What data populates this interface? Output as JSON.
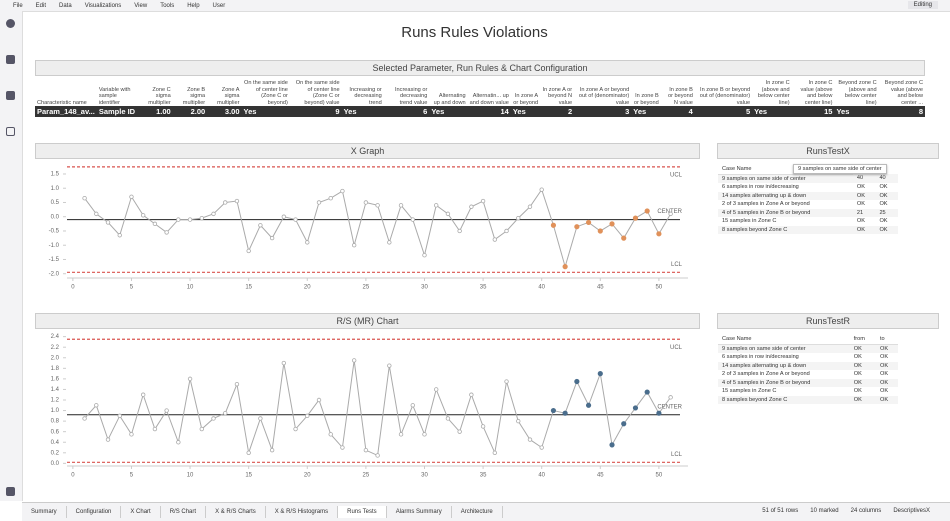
{
  "menu": [
    "File",
    "Edit",
    "Data",
    "Visualizations",
    "View",
    "Tools",
    "Help",
    "User"
  ],
  "mode": "Editing",
  "title": "Runs Rules Violations",
  "config_panel": {
    "title": "Selected Parameter, Run Rules & Chart Configuration",
    "headers": [
      "Characteristic name",
      "Variable with sample identifier",
      "Zone C sigma multiplier",
      "Zone B sigma multiplier",
      "Zone A sigma multiplier",
      "On the same side of center line (Zone C or beyond)",
      "On the same side of center line (Zone C or beyond) value",
      "Increasing or decreasing trend",
      "Increasing or decreasing trend value",
      "Alternating up and down",
      "Alternatin... up and down value",
      "In zone A or beyond",
      "In zone A or beyond N value",
      "In zone A or beyond out of (denominator) value",
      "In zone B or beyond",
      "In zone B or beyond N value",
      "In zone B or beyond out of (denominator) value",
      "In zone C (above and below center line)",
      "In zone C value (above and below center line)",
      "Beyond zone C (above and below center line)",
      "Beyond zone C value (above and below center ..."
    ],
    "row": [
      "Param_148_av...",
      "Sample ID",
      "1.00",
      "2.00",
      "3.00",
      "Yes",
      "9",
      "Yes",
      "6",
      "Yes",
      "14",
      "Yes",
      "2",
      "3",
      "Yes",
      "4",
      "5",
      "Yes",
      "15",
      "Yes",
      "8"
    ]
  },
  "x_graph": {
    "type": "line",
    "title": "X Graph",
    "color": "#aaaaaa",
    "x": [
      1,
      2,
      3,
      4,
      5,
      6,
      7,
      8,
      9,
      10,
      11,
      12,
      13,
      14,
      15,
      16,
      17,
      18,
      19,
      20,
      21,
      22,
      23,
      24,
      25,
      26,
      27,
      28,
      29,
      30,
      31,
      32,
      33,
      34,
      35,
      36,
      37,
      38,
      39,
      40,
      41,
      42,
      43,
      44,
      45,
      46,
      47,
      48,
      49,
      50,
      51
    ],
    "values": [
      0.65,
      0.1,
      -0.2,
      -0.65,
      0.7,
      0.05,
      -0.25,
      -0.55,
      -0.1,
      -0.1,
      -0.05,
      0.1,
      0.5,
      0.55,
      -1.2,
      -0.3,
      -0.75,
      0.0,
      -0.1,
      -0.9,
      0.5,
      0.65,
      0.9,
      -1.0,
      0.5,
      0.4,
      -0.9,
      0.4,
      -0.1,
      -1.35,
      0.4,
      0.1,
      -0.5,
      0.35,
      0.55,
      -0.8,
      -0.5,
      -0.05,
      0.35,
      0.95,
      -0.3,
      -1.75,
      -0.35,
      -0.2,
      -0.5,
      -0.25,
      -0.75,
      -0.05,
      0.2,
      -0.6,
      0.1
    ],
    "point_colors": [
      "#aaaaaa",
      "#aaaaaa",
      "#aaaaaa",
      "#aaaaaa",
      "#aaaaaa",
      "#aaaaaa",
      "#aaaaaa",
      "#aaaaaa",
      "#aaaaaa",
      "#aaaaaa",
      "#aaaaaa",
      "#aaaaaa",
      "#aaaaaa",
      "#aaaaaa",
      "#aaaaaa",
      "#aaaaaa",
      "#aaaaaa",
      "#aaaaaa",
      "#aaaaaa",
      "#aaaaaa",
      "#aaaaaa",
      "#aaaaaa",
      "#aaaaaa",
      "#aaaaaa",
      "#aaaaaa",
      "#aaaaaa",
      "#aaaaaa",
      "#aaaaaa",
      "#aaaaaa",
      "#aaaaaa",
      "#aaaaaa",
      "#aaaaaa",
      "#aaaaaa",
      "#aaaaaa",
      "#aaaaaa",
      "#aaaaaa",
      "#aaaaaa",
      "#aaaaaa",
      "#aaaaaa",
      "#aaaaaa",
      "#e0915a",
      "#e0915a",
      "#e0915a",
      "#e0915a",
      "#e0915a",
      "#e0915a",
      "#e0915a",
      "#e0915a",
      "#e0915a",
      "#e0915a",
      "#aaaaaa"
    ],
    "xlim": [
      -0.5,
      51.8
    ],
    "xticks": [
      0,
      5,
      10,
      15,
      20,
      25,
      30,
      35,
      40,
      45,
      50
    ],
    "ylim": [
      -2.15,
      1.85
    ],
    "yticks": [
      {
        "value": -2.0,
        "label": "-2.0"
      },
      {
        "value": -1.5,
        "label": "-1.5"
      },
      {
        "value": -1.0,
        "label": "-1.0"
      },
      {
        "value": -0.5,
        "label": "-0.5"
      },
      {
        "value": 0.0,
        "label": "0.0"
      },
      {
        "value": 0.5,
        "label": "0.5"
      },
      {
        "value": 1.0,
        "label": "1.0"
      },
      {
        "value": 1.5,
        "label": "1.5"
      }
    ],
    "reference_lines": [
      {
        "label": "UCL",
        "value": 1.75,
        "color": "#d9534f",
        "style": "dashed"
      },
      {
        "label": "CENTER",
        "value": -0.1,
        "color": "#222222",
        "style": "solid"
      },
      {
        "label": "LCL",
        "value": -1.95,
        "color": "#d9534f",
        "style": "dashed"
      }
    ]
  },
  "rs_chart": {
    "type": "line",
    "title": "R/S (MR) Chart",
    "color": "#aaaaaa",
    "x": [
      1,
      2,
      3,
      4,
      5,
      6,
      7,
      8,
      9,
      10,
      11,
      12,
      13,
      14,
      15,
      16,
      17,
      18,
      19,
      20,
      21,
      22,
      23,
      24,
      25,
      26,
      27,
      28,
      29,
      30,
      31,
      32,
      33,
      34,
      35,
      36,
      37,
      38,
      39,
      40,
      41,
      42,
      43,
      44,
      45,
      46,
      47,
      48,
      49,
      50,
      51
    ],
    "values": [
      0.85,
      1.1,
      0.45,
      0.9,
      0.55,
      1.3,
      0.65,
      1.0,
      0.4,
      1.6,
      0.65,
      0.85,
      0.95,
      1.5,
      0.2,
      0.85,
      0.25,
      1.9,
      0.65,
      0.9,
      1.2,
      0.55,
      0.3,
      1.95,
      0.25,
      0.15,
      1.85,
      0.55,
      1.1,
      0.55,
      1.4,
      0.85,
      0.6,
      1.3,
      0.7,
      0.2,
      1.55,
      0.8,
      0.45,
      0.3,
      1.0,
      0.95,
      1.55,
      1.1,
      1.7,
      0.35,
      0.75,
      1.05,
      1.35,
      0.95,
      1.25
    ],
    "point_colors": [
      "#aaaaaa",
      "#aaaaaa",
      "#aaaaaa",
      "#aaaaaa",
      "#aaaaaa",
      "#aaaaaa",
      "#aaaaaa",
      "#aaaaaa",
      "#aaaaaa",
      "#aaaaaa",
      "#aaaaaa",
      "#aaaaaa",
      "#aaaaaa",
      "#aaaaaa",
      "#aaaaaa",
      "#aaaaaa",
      "#aaaaaa",
      "#aaaaaa",
      "#aaaaaa",
      "#aaaaaa",
      "#aaaaaa",
      "#aaaaaa",
      "#aaaaaa",
      "#aaaaaa",
      "#aaaaaa",
      "#aaaaaa",
      "#aaaaaa",
      "#aaaaaa",
      "#aaaaaa",
      "#aaaaaa",
      "#aaaaaa",
      "#aaaaaa",
      "#aaaaaa",
      "#aaaaaa",
      "#aaaaaa",
      "#aaaaaa",
      "#aaaaaa",
      "#aaaaaa",
      "#aaaaaa",
      "#aaaaaa",
      "#4a6d8c",
      "#4a6d8c",
      "#4a6d8c",
      "#4a6d8c",
      "#4a6d8c",
      "#4a6d8c",
      "#4a6d8c",
      "#4a6d8c",
      "#4a6d8c",
      "#4a6d8c",
      "#aaaaaa"
    ],
    "xlim": [
      -0.5,
      51.8
    ],
    "xticks": [
      0,
      5,
      10,
      15,
      20,
      25,
      30,
      35,
      40,
      45,
      50
    ],
    "ylim": [
      -0.05,
      2.45
    ],
    "yticks": [
      {
        "value": 0.0,
        "label": "0.0"
      },
      {
        "value": 0.2,
        "label": "0.2"
      },
      {
        "value": 0.4,
        "label": "0.4"
      },
      {
        "value": 0.6,
        "label": "0.6"
      },
      {
        "value": 0.8,
        "label": "0.8"
      },
      {
        "value": 1.0,
        "label": "1.0"
      },
      {
        "value": 1.2,
        "label": "1.2"
      },
      {
        "value": 1.4,
        "label": "1.4"
      },
      {
        "value": 1.6,
        "label": "1.6"
      },
      {
        "value": 1.8,
        "label": "1.8"
      },
      {
        "value": 2.0,
        "label": "2.0"
      },
      {
        "value": 2.2,
        "label": "2.2"
      },
      {
        "value": 2.4,
        "label": "2.4"
      }
    ],
    "reference_lines": [
      {
        "label": "UCL",
        "value": 2.35,
        "color": "#d9534f",
        "style": "dashed"
      },
      {
        "label": "CENTER",
        "value": 0.92,
        "color": "#222222",
        "style": "solid"
      },
      {
        "label": "LCL",
        "value": 0.02,
        "color": "#d9534f",
        "style": "dashed"
      }
    ]
  },
  "runs_test_x": {
    "title": "RunsTestX",
    "tooltip": "9 samples on same side of center",
    "headers": [
      "Case Name"
    ],
    "rows": [
      [
        "9 samples on same side of center",
        "40",
        "40"
      ],
      [
        "6 samples in row in/decreasing",
        "OK",
        "OK"
      ],
      [
        "14 samples alternating up & down",
        "OK",
        "OK"
      ],
      [
        "2 of 3 samples in Zone A or beyond",
        "OK",
        "OK"
      ],
      [
        "4 of 5 samples in Zone B or beyond",
        "21",
        "25"
      ],
      [
        "15 samples in Zone C",
        "OK",
        "OK"
      ],
      [
        "8 samples beyond Zone C",
        "OK",
        "OK"
      ]
    ]
  },
  "runs_test_r": {
    "title": "RunsTestR",
    "headers": [
      "Case Name",
      "from",
      "to"
    ],
    "rows": [
      [
        "9 samples on same side of center",
        "OK",
        "OK"
      ],
      [
        "6 samples in row in/decreasing",
        "OK",
        "OK"
      ],
      [
        "14 samples alternating up & down",
        "OK",
        "OK"
      ],
      [
        "2 of 3 samples in Zone A or beyond",
        "OK",
        "OK"
      ],
      [
        "4 of 5 samples in Zone B or beyond",
        "OK",
        "OK"
      ],
      [
        "15 samples in Zone C",
        "OK",
        "OK"
      ],
      [
        "8 samples beyond Zone C",
        "OK",
        "OK"
      ]
    ]
  },
  "tabs": [
    "Summary",
    "Configuration",
    "X Chart",
    "R/S Chart",
    "X & R/S Charts",
    "X & R/S Histograms",
    "Runs Tests",
    "Alarms Summary",
    "Architecture"
  ],
  "active_tab": "Runs Tests",
  "status": [
    "51 of 51 rows",
    "10 marked",
    "24 columns",
    "DescriptivesX"
  ]
}
